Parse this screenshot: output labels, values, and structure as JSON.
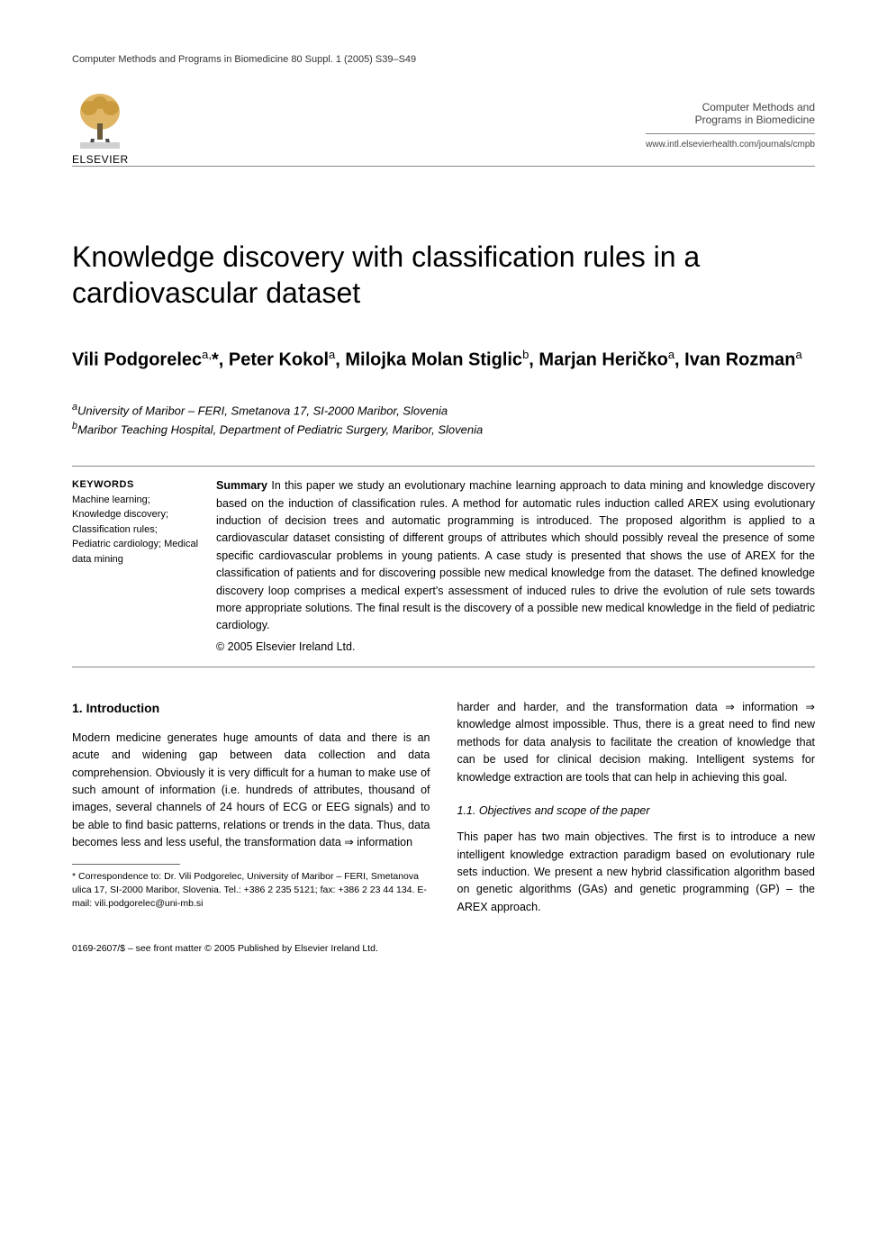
{
  "header": {
    "journal_ref": "Computer Methods and Programs in Biomedicine 80 Suppl. 1 (2005) S39–S49",
    "publisher_name": "ELSEVIER",
    "journal_name_line1": "Computer Methods and",
    "journal_name_line2": "Programs in Biomedicine",
    "journal_url": "www.intl.elsevierhealth.com/journals/cmpb"
  },
  "title": "Knowledge discovery with classification rules in a cardiovascular dataset",
  "authors_html": "Vili Podgorelec<sup>a,</sup>*, Peter Kokol<sup>a</sup>, Milojka Molan Stiglic<sup>b</sup>, Marjan Heričko<sup>a</sup>, Ivan Rozman<sup>a</sup>",
  "affiliations": [
    "aUniversity of Maribor – FERI, Smetanova 17, SI-2000 Maribor, Slovenia",
    "bMaribor Teaching Hospital, Department of Pediatric Surgery, Maribor, Slovenia"
  ],
  "keywords": {
    "label": "KEYWORDS",
    "items": "Machine learning; Knowledge discovery; Classification rules; Pediatric cardiology; Medical data mining"
  },
  "summary": {
    "label": "Summary",
    "text": "In this paper we study an evolutionary machine learning approach to data mining and knowledge discovery based on the induction of classification rules. A method for automatic rules induction called AREX using evolutionary induction of decision trees and automatic programming is introduced. The proposed algorithm is applied to a cardiovascular dataset consisting of different groups of attributes which should possibly reveal the presence of some specific cardiovascular problems in young patients. A case study is presented that shows the use of AREX for the classification of patients and for discovering possible new medical knowledge from the dataset. The defined knowledge discovery loop comprises a medical expert's assessment of induced rules to drive the evolution of rule sets towards more appropriate solutions. The final result is the discovery of a possible new medical knowledge in the field of pediatric cardiology.",
    "copyright": "© 2005 Elsevier Ireland Ltd."
  },
  "body": {
    "section1": {
      "heading": "1. Introduction",
      "para1": "Modern medicine generates huge amounts of data and there is an acute and widening gap between data collection and data comprehension. Obviously it is very difficult for a human to make use of such amount of information (i.e. hundreds of attributes, thousand of images, several channels of 24 hours of ECG or EEG signals) and to be able to find basic patterns, relations or trends in the data. Thus, data becomes less and less useful, the transformation data ⇒ information",
      "para1_cont": "harder and harder, and the transformation data ⇒ information ⇒ knowledge almost impossible. Thus, there is a great need to find new methods for data analysis to facilitate the creation of knowledge that can be used for clinical decision making. Intelligent systems for knowledge extraction are tools that can help in achieving this goal."
    },
    "subsection11": {
      "heading": "1.1. Objectives and scope of the paper",
      "para": "This paper has two main objectives. The first is to introduce a new intelligent knowledge extraction paradigm based on evolutionary rule sets induction. We present a new hybrid classification algorithm based on genetic algorithms (GAs) and genetic programming (GP) – the AREX approach."
    }
  },
  "footnote": {
    "text": "* Correspondence to: Dr. Vili Podgorelec, University of Maribor – FERI, Smetanova ulica 17, SI-2000 Maribor, Slovenia. Tel.: +386 2 235 5121; fax: +386 2 23 44 134. E-mail: vili.podgorelec@uni-mb.si"
  },
  "footer": "0169-2607/$ – see front matter © 2005 Published by Elsevier Ireland Ltd.",
  "elsevier_logo": {
    "tree_color": "#d9a94a",
    "figure_color": "#4a4a4a",
    "banner_color": "#d0d0d0"
  }
}
